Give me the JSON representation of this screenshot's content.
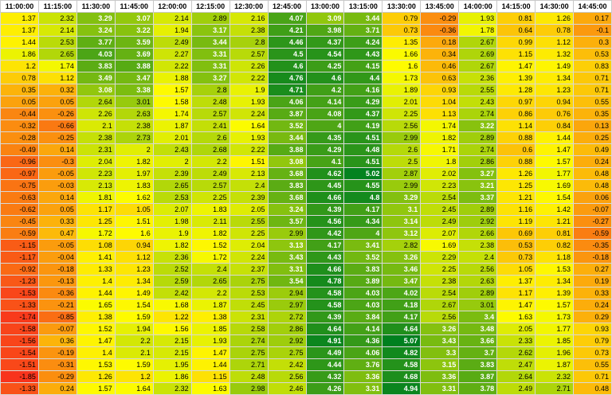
{
  "chart_data": {
    "type": "heatmap",
    "columns": [
      "11:00:00",
      "11:15:00",
      "11:30:00",
      "11:45:00",
      "12:00:00",
      "12:15:00",
      "12:30:00",
      "12:45:00",
      "13:00:00",
      "13:15:00",
      "13:30:00",
      "13:45:00",
      "14:00:00",
      "14:15:00",
      "14:30:00",
      "14:45:00"
    ],
    "rows": [
      [
        1.37,
        2.32,
        3.29,
        3.07,
        2.14,
        2.89,
        2.16,
        4.07,
        3.09,
        3.44,
        0.79,
        -0.29,
        1.93,
        0.81,
        1.26,
        0.17
      ],
      [
        1.37,
        2.14,
        3.24,
        3.22,
        1.94,
        3.17,
        2.38,
        4.21,
        3.98,
        3.71,
        0.73,
        -0.36,
        1.78,
        0.64,
        0.78,
        -0.1
      ],
      [
        1.44,
        2.53,
        3.77,
        3.59,
        2.49,
        3.44,
        2.8,
        4.46,
        4.37,
        4.24,
        1.35,
        0.18,
        2.67,
        0.99,
        1.12,
        0.3
      ],
      [
        1.86,
        2.65,
        4.03,
        3.69,
        2.27,
        3.31,
        2.57,
        4.5,
        4.54,
        4.43,
        1.66,
        0.34,
        2.69,
        1.15,
        1.32,
        0.53
      ],
      [
        1.2,
        1.74,
        3.83,
        3.88,
        2.22,
        3.31,
        2.26,
        4.6,
        4.25,
        4.15,
        1.6,
        0.46,
        2.67,
        1.47,
        1.49,
        0.83
      ],
      [
        0.78,
        1.12,
        3.49,
        3.47,
        1.88,
        3.27,
        2.22,
        4.76,
        4.6,
        4.4,
        1.73,
        0.63,
        2.36,
        1.39,
        1.34,
        0.71
      ],
      [
        0.35,
        0.32,
        3.08,
        3.38,
        1.57,
        2.8,
        1.9,
        4.71,
        4.2,
        4.16,
        1.89,
        0.93,
        2.55,
        1.28,
        1.23,
        0.71
      ],
      [
        0.05,
        0.05,
        2.64,
        3.01,
        1.58,
        2.48,
        1.93,
        4.06,
        4.14,
        4.29,
        2.01,
        1.04,
        2.43,
        0.97,
        0.94,
        0.55
      ],
      [
        -0.44,
        -0.26,
        2.26,
        2.63,
        1.74,
        2.57,
        2.24,
        3.87,
        4.08,
        4.37,
        2.25,
        1.13,
        2.74,
        0.86,
        0.76,
        0.35
      ],
      [
        -0.32,
        -0.66,
        2.1,
        2.38,
        1.87,
        2.41,
        1.64,
        3.52,
        4,
        4.19,
        2.56,
        1.74,
        3.22,
        1.14,
        0.84,
        0.13
      ],
      [
        -0.28,
        -0.25,
        2.38,
        2.73,
        2.01,
        2.6,
        1.93,
        3.44,
        4.35,
        4.51,
        2.99,
        1.82,
        2.89,
        0.88,
        1.44,
        0.25
      ],
      [
        -0.49,
        0.14,
        2.31,
        2,
        2.43,
        2.68,
        2.22,
        3.88,
        4.29,
        4.48,
        2.6,
        1.71,
        2.74,
        0.6,
        1.47,
        0.49
      ],
      [
        -0.96,
        -0.3,
        2.04,
        1.82,
        2,
        2.2,
        1.51,
        3.08,
        4.1,
        4.51,
        2.5,
        1.8,
        2.86,
        0.88,
        1.57,
        0.24
      ],
      [
        -0.97,
        -0.05,
        2.23,
        1.97,
        2.39,
        2.49,
        2.13,
        3.68,
        4.62,
        5.02,
        2.87,
        2.02,
        3.27,
        1.26,
        1.77,
        0.48
      ],
      [
        -0.75,
        -0.03,
        2.13,
        1.83,
        2.65,
        2.57,
        2.4,
        3.83,
        4.45,
        4.55,
        2.99,
        2.23,
        3.21,
        1.25,
        1.69,
        0.48
      ],
      [
        -0.63,
        0.14,
        1.81,
        1.62,
        2.53,
        2.25,
        2.39,
        3.68,
        4.66,
        4.8,
        3.29,
        2.54,
        3.37,
        1.21,
        1.54,
        0.06
      ],
      [
        -0.62,
        0.05,
        1.17,
        1.05,
        2.07,
        1.83,
        2.05,
        3.24,
        4.39,
        4.17,
        3.1,
        2.45,
        2.89,
        1.16,
        1.42,
        -0.07
      ],
      [
        -0.45,
        0.33,
        1.25,
        1.51,
        1.98,
        2.11,
        2.55,
        3.57,
        4.56,
        4.34,
        3.14,
        2.49,
        2.92,
        1.19,
        1.21,
        -0.27
      ],
      [
        -0.59,
        0.47,
        1.72,
        1.6,
        1.9,
        1.82,
        2.25,
        2.99,
        4.42,
        4,
        3.12,
        2.07,
        2.66,
        0.69,
        0.81,
        -0.59
      ],
      [
        -1.15,
        -0.05,
        1.08,
        0.94,
        1.82,
        1.52,
        2.04,
        3.13,
        4.17,
        3.41,
        2.82,
        1.69,
        2.38,
        0.53,
        0.82,
        -0.35
      ],
      [
        -1.17,
        -0.04,
        1.41,
        1.12,
        2.36,
        1.72,
        2.24,
        3.43,
        4.43,
        3.52,
        3.26,
        2.29,
        2.4,
        0.73,
        1.18,
        -0.18
      ],
      [
        -0.92,
        -0.18,
        1.33,
        1.23,
        2.52,
        2.4,
        2.37,
        3.31,
        4.66,
        3.83,
        3.46,
        2.25,
        2.56,
        1.05,
        1.53,
        0.27
      ],
      [
        -1.23,
        -0.13,
        1.4,
        1.34,
        2.59,
        2.65,
        2.75,
        3.54,
        4.78,
        3.89,
        3.47,
        2.38,
        2.63,
        1.37,
        1.34,
        0.19
      ],
      [
        -1.53,
        -0.36,
        1.44,
        1.49,
        2.42,
        2.2,
        2.53,
        2.94,
        4.58,
        4.03,
        4.02,
        2.54,
        2.89,
        1.17,
        1.39,
        0.33
      ],
      [
        -1.33,
        -0.21,
        1.65,
        1.54,
        1.68,
        1.87,
        2.45,
        2.97,
        4.58,
        4.03,
        4.18,
        2.67,
        3.01,
        1.47,
        1.57,
        0.24
      ],
      [
        -1.74,
        -0.85,
        1.38,
        1.59,
        1.22,
        1.38,
        2.31,
        2.72,
        4.39,
        3.84,
        4.17,
        2.56,
        3.4,
        1.63,
        1.73,
        0.29
      ],
      [
        -1.58,
        -0.07,
        1.52,
        1.94,
        1.56,
        1.85,
        2.58,
        2.86,
        4.64,
        4.14,
        4.64,
        3.26,
        3.48,
        2.05,
        1.77,
        0.93
      ],
      [
        -1.56,
        0.36,
        1.47,
        2.2,
        2.15,
        1.93,
        2.74,
        2.92,
        4.91,
        4.36,
        5.07,
        3.43,
        3.66,
        2.33,
        1.85,
        0.79
      ],
      [
        -1.54,
        -0.19,
        1.4,
        2.1,
        2.15,
        1.47,
        2.75,
        2.75,
        4.49,
        4.06,
        4.82,
        3.3,
        3.7,
        2.62,
        1.96,
        0.73
      ],
      [
        -1.51,
        -0.31,
        1.53,
        1.59,
        1.95,
        1.44,
        2.71,
        2.42,
        4.44,
        3.76,
        4.58,
        3.15,
        3.83,
        2.47,
        1.87,
        0.55
      ],
      [
        -1.85,
        -0.29,
        1.26,
        1.2,
        1.86,
        1.15,
        2.48,
        2.56,
        4.32,
        3.36,
        4.68,
        3.36,
        3.87,
        2.64,
        2.32,
        0.71
      ],
      [
        -1.33,
        0.24,
        1.57,
        1.64,
        2.32,
        1.63,
        2.98,
        2.46,
        4.26,
        3.31,
        4.94,
        3.31,
        3.78,
        2.49,
        2.71,
        0.48
      ]
    ],
    "color_scale": {
      "min": -1.85,
      "max": 5.07,
      "low": "#f8341c",
      "mid": "#fefc00",
      "high": "#00801f"
    }
  }
}
